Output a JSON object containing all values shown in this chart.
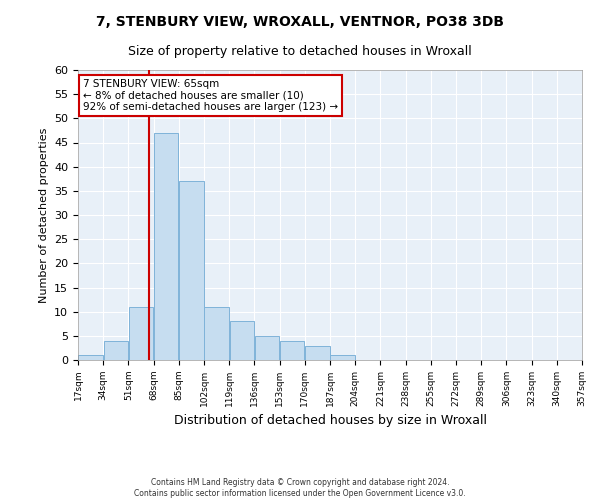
{
  "title": "7, STENBURY VIEW, WROXALL, VENTNOR, PO38 3DB",
  "subtitle": "Size of property relative to detached houses in Wroxall",
  "xlabel": "Distribution of detached houses by size in Wroxall",
  "ylabel": "Number of detached properties",
  "bar_color": "#c6ddf0",
  "bar_edge_color": "#7fb3d9",
  "background_color": "#e8f0f8",
  "bin_edges": [
    17,
    34,
    51,
    68,
    85,
    102,
    119,
    136,
    153,
    170,
    187,
    204,
    221,
    238,
    255,
    272,
    289,
    306,
    323,
    340,
    357
  ],
  "bar_heights": [
    1,
    4,
    11,
    47,
    37,
    11,
    8,
    5,
    4,
    3,
    1,
    0,
    0,
    0,
    0,
    0,
    0,
    0,
    0,
    0
  ],
  "property_line_x": 65,
  "property_line_color": "#cc0000",
  "ylim": [
    0,
    60
  ],
  "yticks": [
    0,
    5,
    10,
    15,
    20,
    25,
    30,
    35,
    40,
    45,
    50,
    55,
    60
  ],
  "annotation_title": "7 STENBURY VIEW: 65sqm",
  "annotation_line1": "← 8% of detached houses are smaller (10)",
  "annotation_line2": "92% of semi-detached houses are larger (123) →",
  "footer_line1": "Contains HM Land Registry data © Crown copyright and database right 2024.",
  "footer_line2": "Contains public sector information licensed under the Open Government Licence v3.0.",
  "tick_labels": [
    "17sqm",
    "34sqm",
    "51sqm",
    "68sqm",
    "85sqm",
    "102sqm",
    "119sqm",
    "136sqm",
    "153sqm",
    "170sqm",
    "187sqm",
    "204sqm",
    "221sqm",
    "238sqm",
    "255sqm",
    "272sqm",
    "289sqm",
    "306sqm",
    "323sqm",
    "340sqm",
    "357sqm"
  ]
}
